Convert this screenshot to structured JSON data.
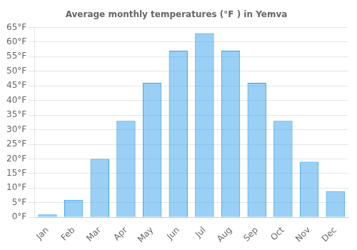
{
  "chart_data": {
    "type": "bar",
    "title": "Average monthly temperatures (°F ) in Yemva",
    "categories": [
      "Jan",
      "Feb",
      "Mar",
      "Apr",
      "May",
      "Jun",
      "Jul",
      "Aug",
      "Sep",
      "Oct",
      "Nov",
      "Dec"
    ],
    "values": [
      1,
      6,
      20,
      33,
      46,
      57,
      63,
      57,
      46,
      33,
      19,
      9
    ],
    "ylim": [
      0,
      65
    ],
    "yticks": [
      {
        "value": 0,
        "label": "0°F"
      },
      {
        "value": 5,
        "label": "5°F"
      },
      {
        "value": 10,
        "label": "10°F"
      },
      {
        "value": 15,
        "label": "15°F"
      },
      {
        "value": 20,
        "label": "20°F"
      },
      {
        "value": 25,
        "label": "25°F"
      },
      {
        "value": 30,
        "label": "30°F"
      },
      {
        "value": 35,
        "label": "35°F"
      },
      {
        "value": 40,
        "label": "40°F"
      },
      {
        "value": 45,
        "label": "45°F"
      },
      {
        "value": 50,
        "label": "50°F"
      },
      {
        "value": 55,
        "label": "55°F"
      },
      {
        "value": 60,
        "label": "60°F"
      },
      {
        "value": 65,
        "label": "65°F"
      }
    ],
    "grid": true
  }
}
